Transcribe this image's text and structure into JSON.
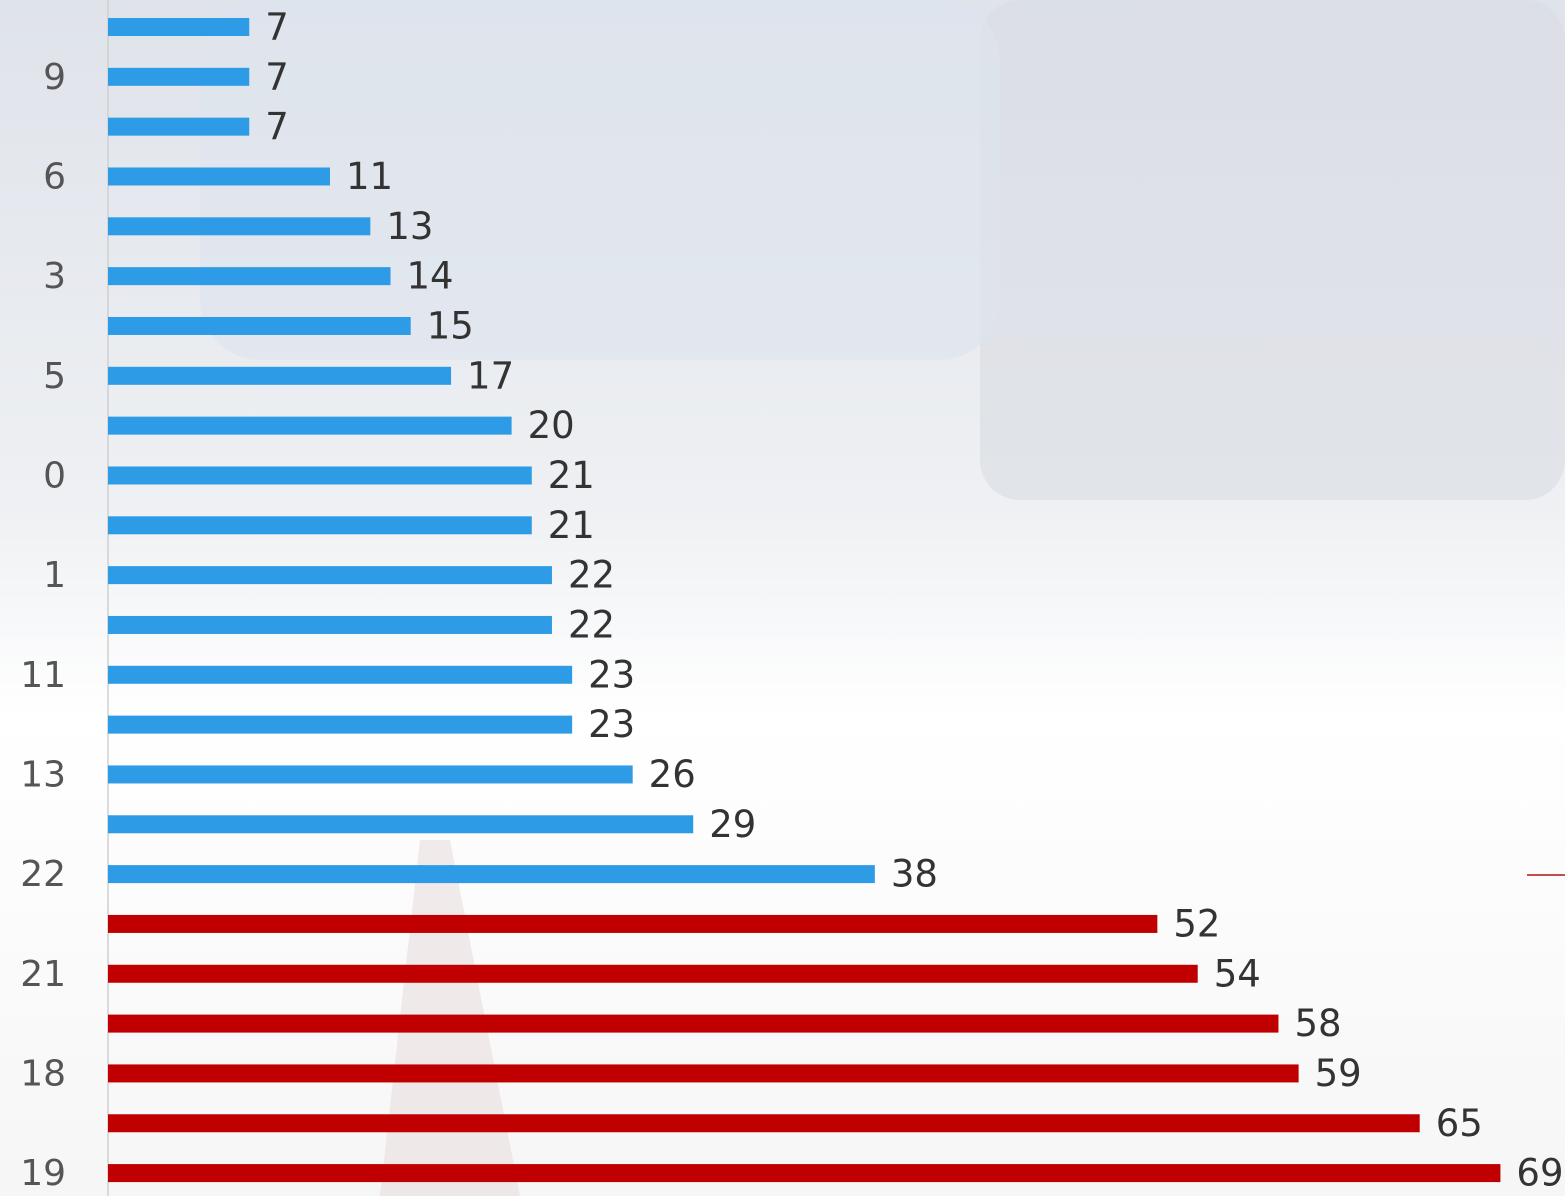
{
  "chart_data": {
    "type": "bar",
    "orientation": "horizontal",
    "categories": [
      null,
      "9",
      null,
      "6",
      null,
      "3",
      null,
      "5",
      null,
      "0",
      null,
      "1",
      null,
      "11",
      null,
      "13",
      null,
      "22",
      null,
      "21",
      null,
      "18",
      null,
      "19"
    ],
    "values": [
      7,
      7,
      7,
      11,
      13,
      14,
      15,
      17,
      20,
      21,
      21,
      22,
      22,
      23,
      23,
      26,
      29,
      38,
      52,
      54,
      58,
      59,
      65,
      69
    ],
    "colors": [
      "#2e9be6",
      "#2e9be6",
      "#2e9be6",
      "#2e9be6",
      "#2e9be6",
      "#2e9be6",
      "#2e9be6",
      "#2e9be6",
      "#2e9be6",
      "#2e9be6",
      "#2e9be6",
      "#2e9be6",
      "#2e9be6",
      "#2e9be6",
      "#2e9be6",
      "#2e9be6",
      "#2e9be6",
      "#2e9be6",
      "#c00000",
      "#c00000",
      "#c00000",
      "#c00000",
      "#c00000",
      "#c00000"
    ],
    "xlim": [
      0,
      72.2
    ],
    "grid": false
  }
}
